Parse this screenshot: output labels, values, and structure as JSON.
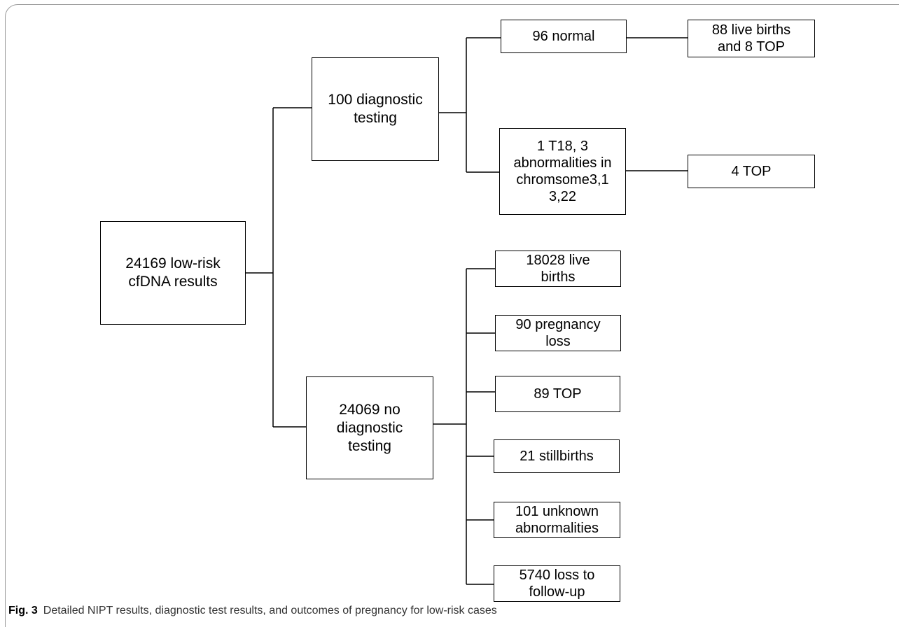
{
  "nodes": {
    "root": "24169 low-risk\ncfDNA results",
    "diag": "100 diagnostic\ntesting",
    "normal": "96 normal",
    "normal_outcome": "88 live births\nand 8 TOP",
    "abnormal": "1 T18, 3\nabnormalities in\nchromsome3,1\n3,22",
    "abnormal_outcome": "4 TOP",
    "nodiag": "24069 no\ndiagnostic\ntesting",
    "live_births": "18028 live\nbirths",
    "pregnancy_loss": "90 pregnancy\nloss",
    "top": "89 TOP",
    "stillbirths": "21 stillbirths",
    "unknown_abn": "101 unknown\nabnormalities",
    "loss_followup": "5740 loss to\nfollow-up"
  },
  "caption": {
    "label": "Fig. 3",
    "text": "Detailed NIPT results, diagnostic test results, and outcomes of pregnancy for low-risk cases"
  }
}
